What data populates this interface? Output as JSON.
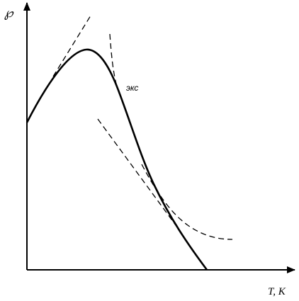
{
  "axes": {
    "y_label": "℘",
    "x_label": "T, K"
  },
  "curve_label": "экс"
}
